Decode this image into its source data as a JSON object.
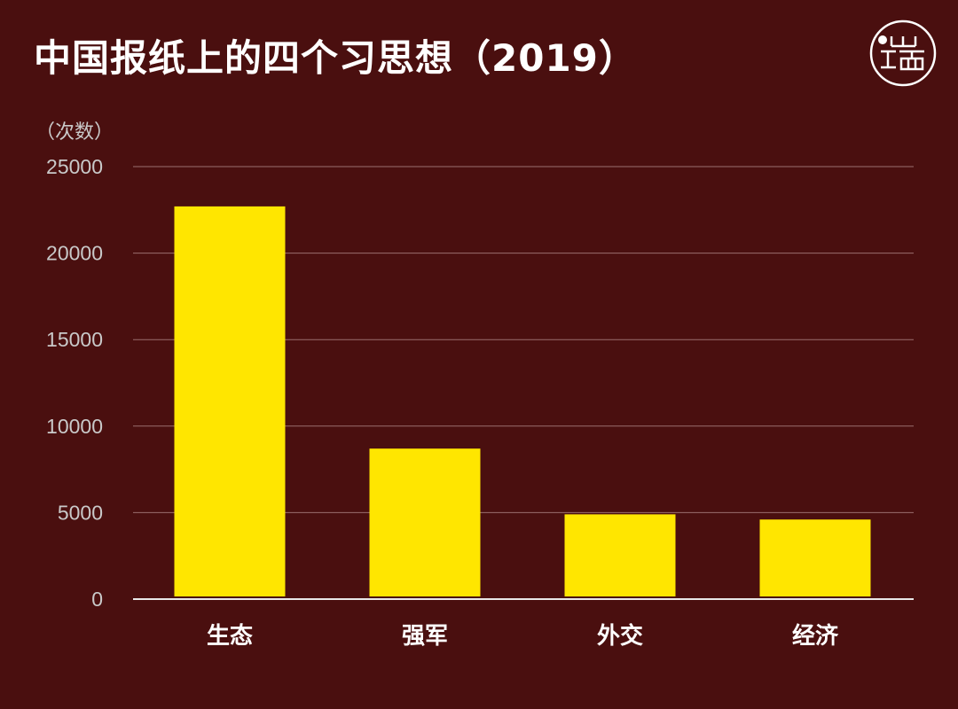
{
  "header": {
    "title": "中国报纸上的四个习思想（2019）"
  },
  "logo": {
    "icon": "initium-logo-icon",
    "text": "端"
  },
  "colors": {
    "background": "#4a0f0f",
    "bar": "#ffe600",
    "grid": "#9a6f6f",
    "axis": "#e8e8e8",
    "text": "#ffffff",
    "muted": "#c9c9c9"
  },
  "chart_data": {
    "type": "bar",
    "title": "中国报纸上的四个习思想（2019）",
    "ylabel": "（次数）",
    "xlabel": "",
    "categories": [
      "生态",
      "强军",
      "外交",
      "经济"
    ],
    "values": [
      22700,
      8700,
      4900,
      4600
    ],
    "ylim": [
      0,
      25000
    ],
    "yticks": [
      0,
      5000,
      10000,
      15000,
      20000,
      25000
    ],
    "grid": true,
    "legend": "none"
  }
}
